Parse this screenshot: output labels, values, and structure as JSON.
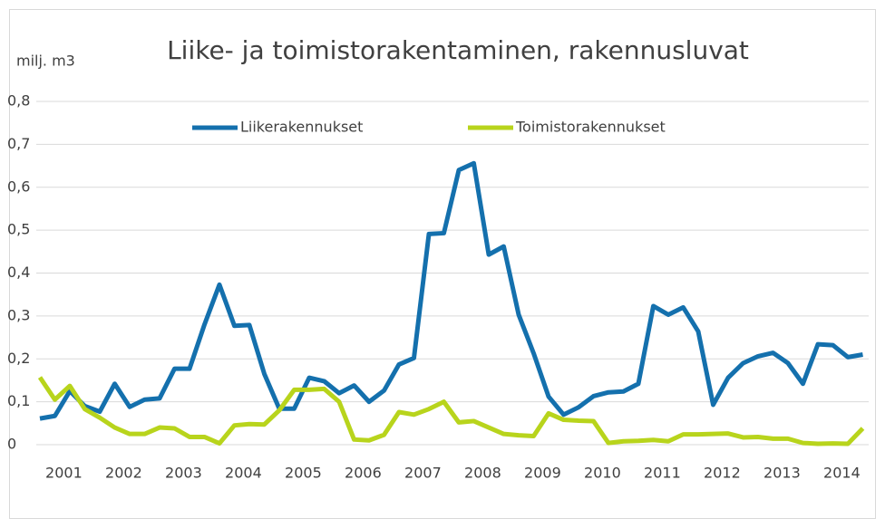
{
  "chart_data": {
    "type": "line",
    "title": "Liike- ja toimistorakentaminen, rakennusluvat",
    "y_label": "milj. m3",
    "categories": [
      "2001",
      null,
      null,
      null,
      "2002",
      null,
      null,
      null,
      "2003",
      null,
      null,
      null,
      "2004",
      null,
      null,
      null,
      "2005",
      null,
      null,
      null,
      "2006",
      null,
      null,
      null,
      "2007",
      null,
      null,
      null,
      "2008",
      null,
      null,
      null,
      "2009",
      null,
      null,
      null,
      "2010",
      null,
      null,
      null,
      "2011",
      null,
      null,
      null,
      "2012",
      null,
      null,
      null,
      "2013",
      null,
      null,
      null,
      "2014",
      null,
      null,
      null
    ],
    "series": [
      {
        "name": "Liikerakennukset",
        "color": "#1470ad",
        "values": [
          0.061,
          0.067,
          0.125,
          0.09,
          0.077,
          0.142,
          0.088,
          0.105,
          0.108,
          0.177,
          0.177,
          0.28,
          0.373,
          0.277,
          0.279,
          0.165,
          0.084,
          0.084,
          0.156,
          0.148,
          0.12,
          0.138,
          0.1,
          0.126,
          0.187,
          0.202,
          0.491,
          0.493,
          0.64,
          0.656,
          0.443,
          0.462,
          0.303,
          0.213,
          0.112,
          0.07,
          0.087,
          0.113,
          0.122,
          0.124,
          0.142,
          0.323,
          0.303,
          0.32,
          0.264,
          0.093,
          0.156,
          0.19,
          0.206,
          0.214,
          0.19,
          0.142,
          0.234,
          0.232,
          0.204,
          0.21
        ]
      },
      {
        "name": "Toimistorakennukset",
        "color": "#b8d41c",
        "values": [
          0.157,
          0.105,
          0.137,
          0.083,
          0.063,
          0.04,
          0.025,
          0.025,
          0.04,
          0.038,
          0.018,
          0.018,
          0.003,
          0.045,
          0.048,
          0.047,
          0.08,
          0.128,
          0.128,
          0.13,
          0.1,
          0.012,
          0.01,
          0.023,
          0.076,
          0.07,
          0.083,
          0.1,
          0.052,
          0.055,
          0.04,
          0.025,
          0.022,
          0.02,
          0.073,
          0.058,
          0.056,
          0.055,
          0.004,
          0.008,
          0.009,
          0.011,
          0.008,
          0.024,
          0.024,
          0.025,
          0.026,
          0.017,
          0.018,
          0.014,
          0.014,
          0.004,
          0.002,
          0.003,
          0.002,
          0.038
        ]
      }
    ],
    "ylim": [
      0,
      0.8
    ],
    "yticks": [
      0,
      {
        "value": 0.1,
        "label": "0,1"
      },
      {
        "value": 0.2,
        "label": "0,2"
      },
      {
        "value": 0.3,
        "label": "0,3"
      },
      {
        "value": 0.4,
        "label": "0,4"
      },
      {
        "value": 0.5,
        "label": "0,5"
      },
      {
        "value": 0.6,
        "label": "0,6"
      },
      {
        "value": 0.7,
        "label": "0,7"
      },
      {
        "value": 0.8,
        "label": "0,8"
      }
    ],
    "grid": true,
    "legend": "top"
  }
}
